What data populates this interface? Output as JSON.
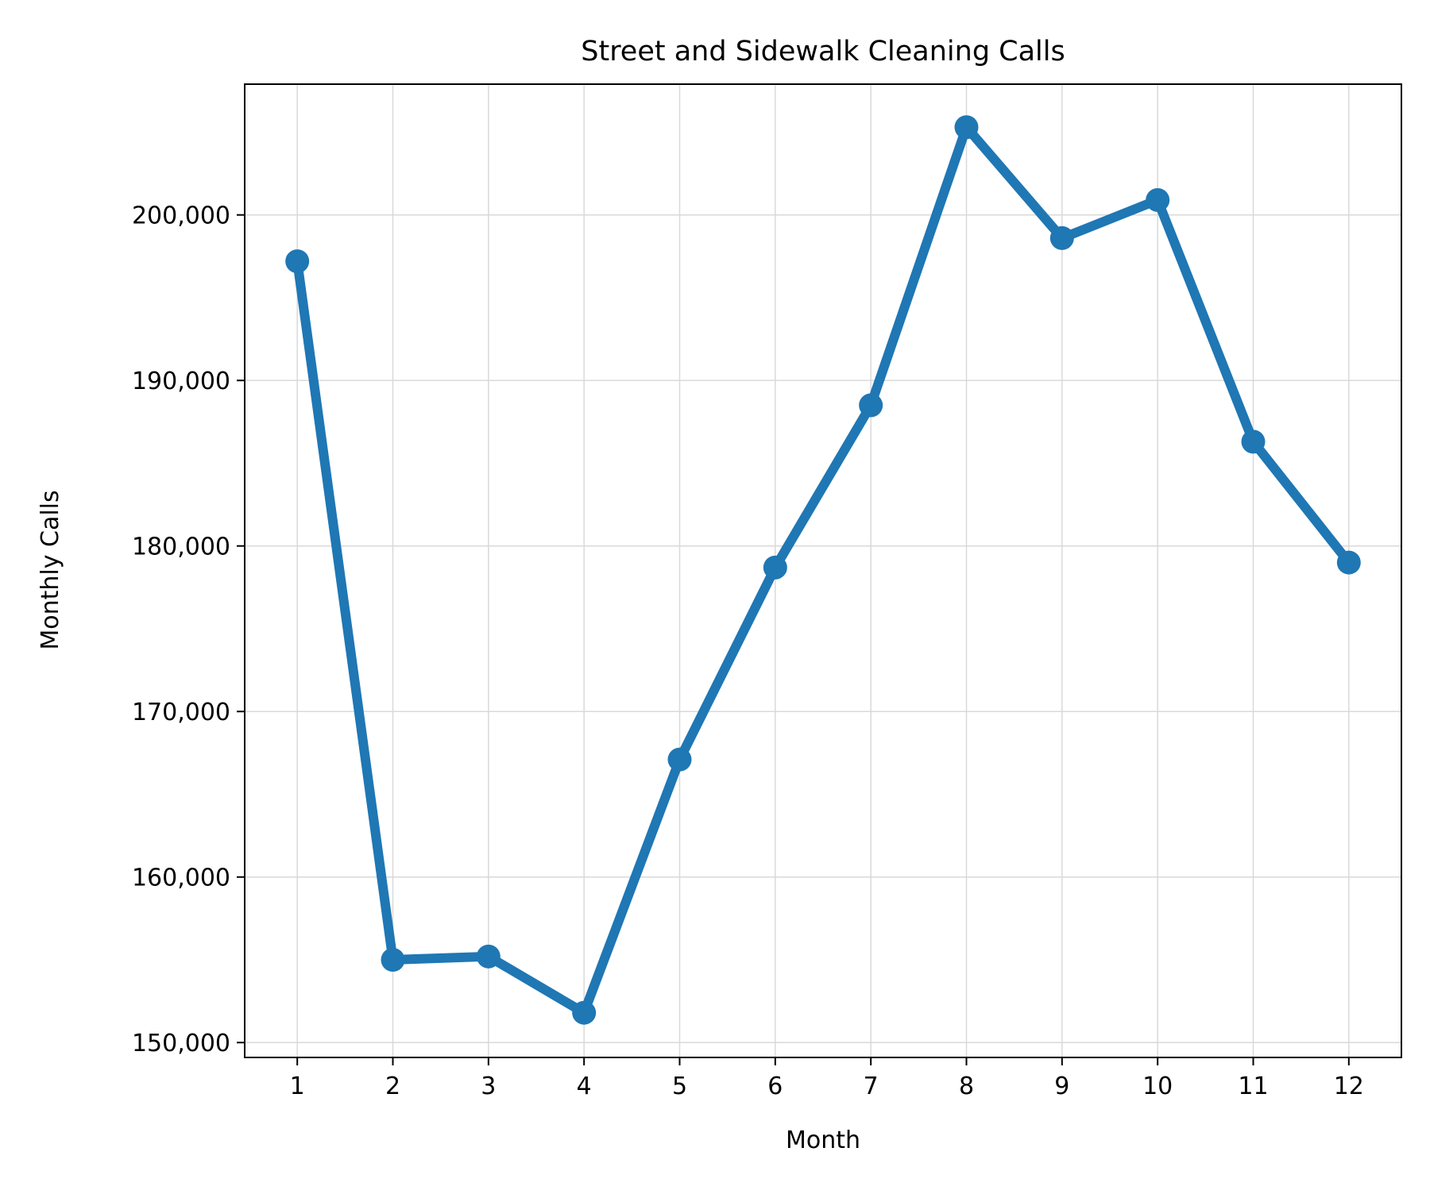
{
  "chart_data": {
    "type": "line",
    "title": "Street and Sidewalk Cleaning Calls",
    "xlabel": "Month",
    "ylabel": "Monthly Calls",
    "x": [
      1,
      2,
      3,
      4,
      5,
      6,
      7,
      8,
      9,
      10,
      11,
      12
    ],
    "x_tick_labels": [
      "1",
      "2",
      "3",
      "4",
      "5",
      "6",
      "7",
      "8",
      "9",
      "10",
      "11",
      "12"
    ],
    "xlim": [
      0.45,
      12.55
    ],
    "ylim": [
      149100,
      207900
    ],
    "y_ticks": [
      150000,
      160000,
      170000,
      180000,
      190000,
      200000
    ],
    "y_tick_labels": [
      "150,000",
      "160,000",
      "170,000",
      "180,000",
      "190,000",
      "200,000"
    ],
    "series": [
      {
        "values": [
          197200,
          155000,
          155200,
          151800,
          167100,
          178700,
          188500,
          205300,
          198600,
          200900,
          186300,
          179000
        ],
        "color": "#1f77b4",
        "marker": "circle"
      }
    ],
    "grid": true,
    "grid_color": "#d9d9d9",
    "legend": false
  }
}
